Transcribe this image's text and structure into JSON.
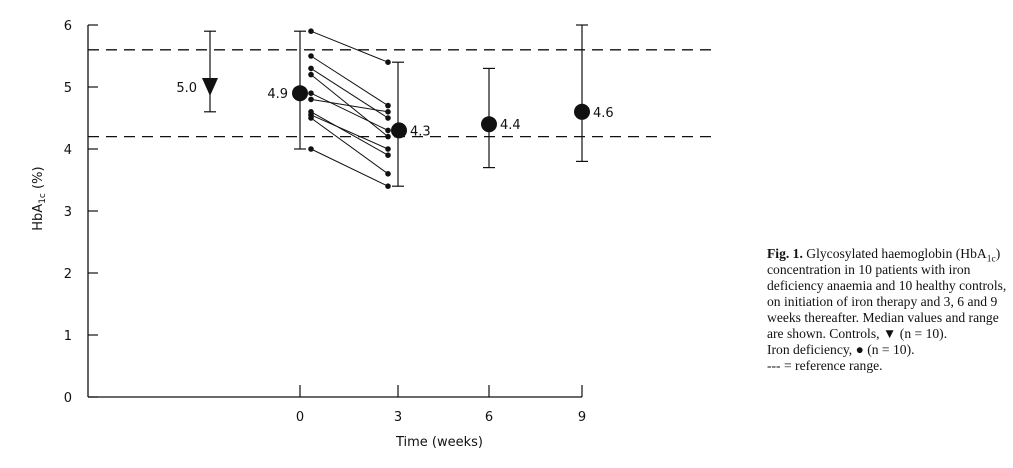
{
  "chart_data": {
    "type": "scatter",
    "title": "",
    "xlabel": "Time (weeks)",
    "ylabel": "HbA1c (%)",
    "ylabel_main": "HbA",
    "ylabel_sub": "1c",
    "ylabel_unit": " (%)",
    "ylim": [
      0,
      6
    ],
    "y_ticks": [
      "0",
      "1",
      "2",
      "3",
      "4",
      "5",
      "6"
    ],
    "x_ticks": [
      "0",
      "3",
      "6",
      "9"
    ],
    "grid": false,
    "reference_range": {
      "lower": 4.2,
      "upper": 5.6,
      "style": "dashed"
    },
    "series": [
      {
        "name": "Controls",
        "marker": "triangle-down",
        "x": "control",
        "median": 5.0,
        "min": 4.6,
        "max": 5.9,
        "label": "5.0"
      },
      {
        "name": "Iron deficiency",
        "marker": "circle",
        "points": [
          {
            "x": 0,
            "median": 4.9,
            "min": 4.0,
            "max": 5.9,
            "label": "4.9"
          },
          {
            "x": 3,
            "median": 4.3,
            "min": 3.4,
            "max": 5.4,
            "label": "4.3"
          },
          {
            "x": 6,
            "median": 4.4,
            "min": 3.7,
            "max": 5.3,
            "label": "4.4"
          },
          {
            "x": 9,
            "median": 4.6,
            "min": 3.8,
            "max": 6.0,
            "label": "4.6"
          }
        ]
      }
    ],
    "individual_patients": [
      {
        "week0": 5.9,
        "week3": 5.4
      },
      {
        "week0": 5.5,
        "week3": 4.7
      },
      {
        "week0": 5.3,
        "week3": 4.5
      },
      {
        "week0": 5.2,
        "week3": 4.2
      },
      {
        "week0": 4.9,
        "week3": 4.3
      },
      {
        "week0": 4.8,
        "week3": 4.6
      },
      {
        "week0": 4.6,
        "week3": 3.9
      },
      {
        "week0": 4.55,
        "week3": 4.0
      },
      {
        "week0": 4.5,
        "week3": 3.6
      },
      {
        "week0": 4.0,
        "week3": 3.4
      }
    ]
  },
  "caption": {
    "fig_label": "Fig. 1.",
    "text_1": " Glycosylated haemoglobin (HbA",
    "text_1_sub": "1c",
    "text_2": ") concentration in 10 patients with iron deficiency anaemia and 10 healthy controls, on initiation of iron therapy and 3, 6 and 9 weeks thereafter. Median values and range are shown. Controls, ",
    "controls_symbol": "▼",
    "controls_n": " (n = 10).",
    "iron_text": "Iron deficiency, ",
    "iron_symbol": "●",
    "iron_n": " (n = 10).",
    "ref_symbol": "--- ",
    "ref_text": "= reference range."
  },
  "colors": {
    "ink": "#111111",
    "background": "#ffffff"
  }
}
